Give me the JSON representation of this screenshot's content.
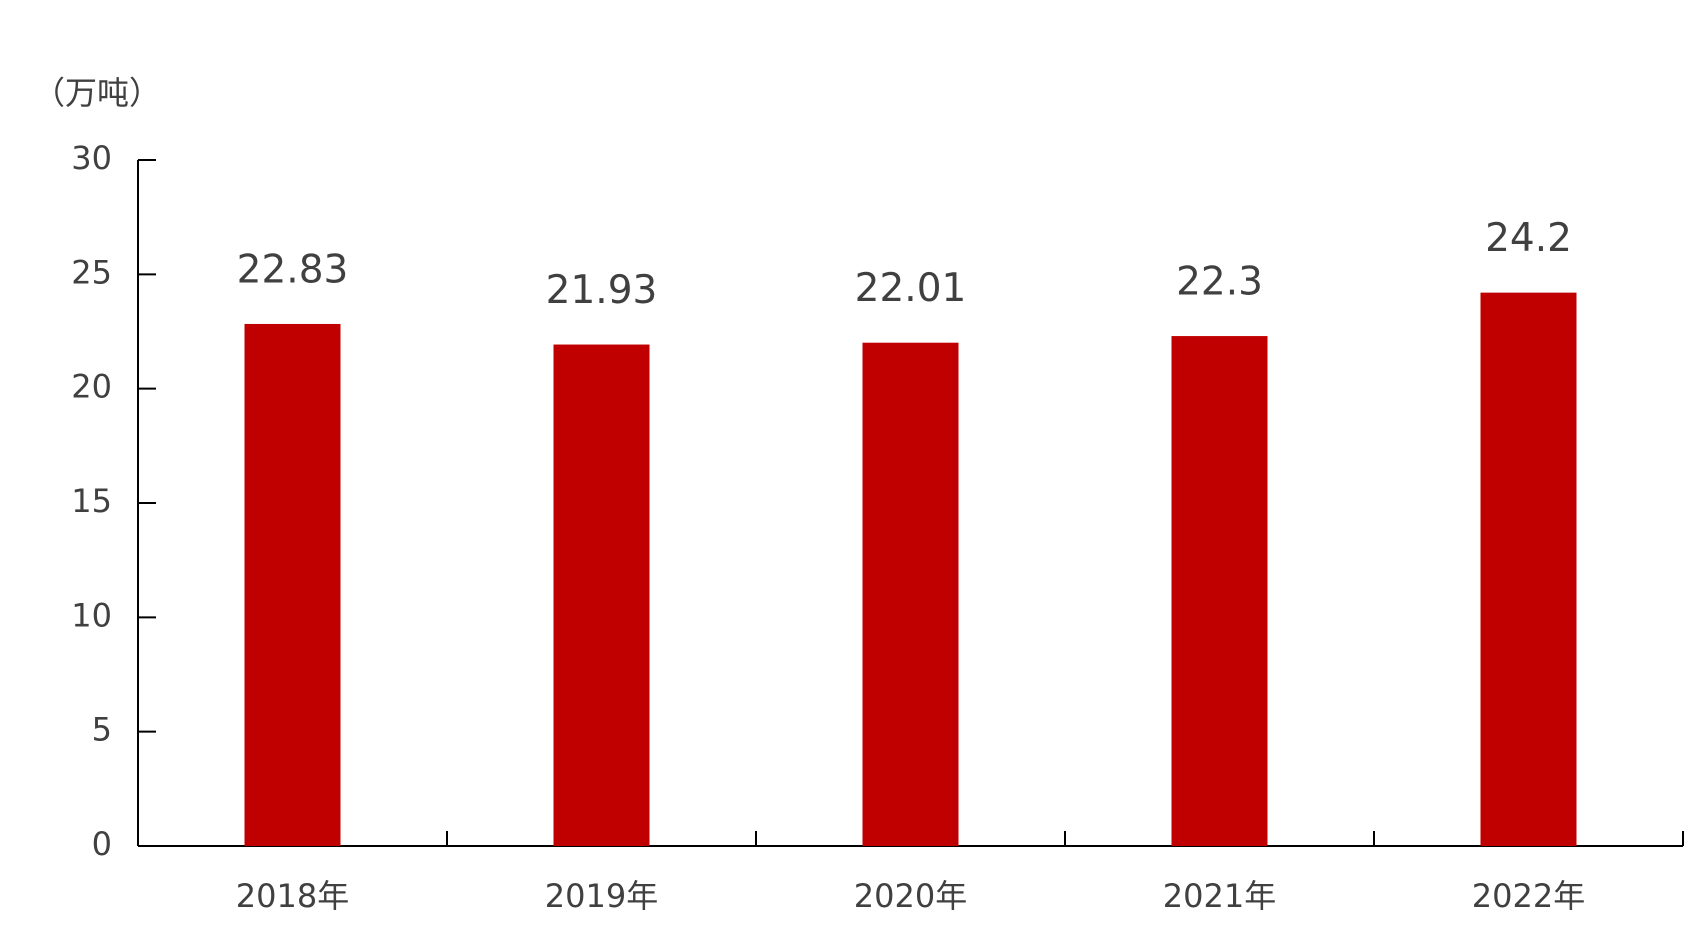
{
  "chart_data": {
    "type": "bar",
    "y_axis_label": "（万吨）",
    "categories": [
      "2018年",
      "2019年",
      "2020年",
      "2021年",
      "2022年"
    ],
    "values": [
      22.83,
      21.93,
      22.01,
      22.3,
      24.2
    ],
    "color": "#c00000",
    "ylim": [
      0,
      30
    ],
    "yticks": [
      0,
      5,
      10,
      15,
      20,
      25,
      30
    ],
    "grid": false
  }
}
